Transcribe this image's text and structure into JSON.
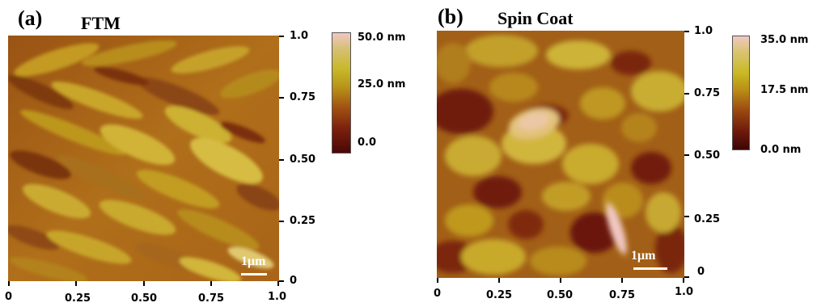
{
  "panel_a": {
    "label": "(a)",
    "title": "FTM",
    "y_ticks": [
      "1.0",
      "0.75",
      "0.50",
      "0.25",
      "0"
    ],
    "x_ticks": [
      "0",
      "0.25",
      "0.50",
      "0.75",
      "1.0"
    ],
    "colorbar": {
      "labels": [
        "50.0 nm",
        "25.0 nm",
        "0.0"
      ],
      "colors": [
        "#f0c8c4",
        "#c8b82a",
        "#a25212",
        "#4a0707"
      ]
    },
    "scale_bar_label": "1μm"
  },
  "panel_b": {
    "label": "(b)",
    "title": "Spin Coat",
    "y_ticks": [
      "1.0",
      "0.75",
      "0.50",
      "0.25",
      "0"
    ],
    "x_ticks": [
      "0",
      "0.25",
      "0.50",
      "0.75",
      "1.0"
    ],
    "colorbar": {
      "labels": [
        "35.0 nm",
        "17.5 nm",
        "0.0 nm"
      ],
      "colors": [
        "#f0c8c4",
        "#c9ba25",
        "#9a4710",
        "#3e0505"
      ]
    },
    "scale_bar_label": "1μm"
  }
}
